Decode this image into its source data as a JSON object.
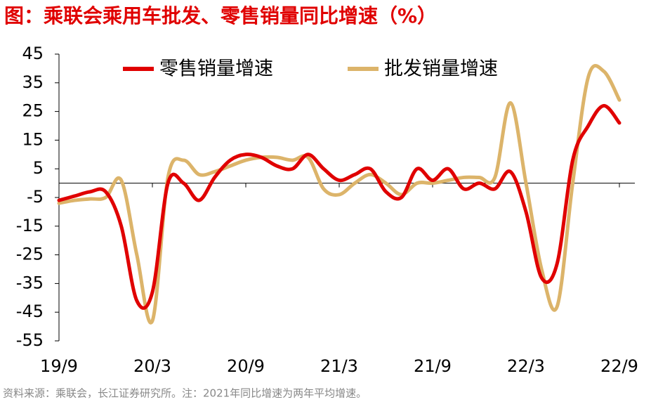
{
  "chart_data": {
    "type": "line",
    "title": "图：乘联会乘用车批发、零售销量同比增速（%）",
    "note": "资料来源：乘联会，长江证券研究所。注：2021年同比增速为两年平均增速。",
    "categories": [
      "19/9",
      null,
      null,
      null,
      null,
      null,
      "20/3",
      null,
      null,
      null,
      null,
      null,
      "20/9",
      null,
      null,
      null,
      null,
      null,
      "21/3",
      null,
      null,
      null,
      null,
      null,
      "21/9",
      null,
      null,
      null,
      null,
      null,
      "22/3",
      null,
      null,
      null,
      null,
      null,
      "22/9"
    ],
    "series": [
      {
        "name": "零售销量增速",
        "color": "#e00000",
        "values": [
          -6,
          -4.5,
          -3,
          -3,
          -15,
          -41,
          -38,
          0,
          0,
          -6,
          2,
          8,
          10,
          9,
          6,
          5,
          10,
          5,
          1,
          3,
          5,
          -3,
          -5,
          5,
          1,
          5,
          -2,
          0,
          -2,
          4,
          -10,
          -33,
          -28,
          8,
          20,
          27,
          21
        ]
      },
      {
        "name": "批发销量增速",
        "color": "#dcb46a",
        "values": [
          -7,
          -6,
          -5.5,
          -5,
          1,
          -25,
          -48,
          2,
          8,
          3,
          4,
          6,
          8,
          9,
          9,
          8,
          9,
          -2,
          -4,
          0,
          3,
          0,
          -4,
          0,
          0,
          1,
          2,
          2,
          2,
          28,
          0,
          -30,
          -43,
          0,
          37,
          39,
          29
        ]
      }
    ],
    "ylim": [
      -55,
      45
    ],
    "yticks": [
      45,
      35,
      25,
      15,
      5,
      -5,
      -15,
      -25,
      -35,
      -45,
      -55
    ],
    "legend": "top"
  }
}
